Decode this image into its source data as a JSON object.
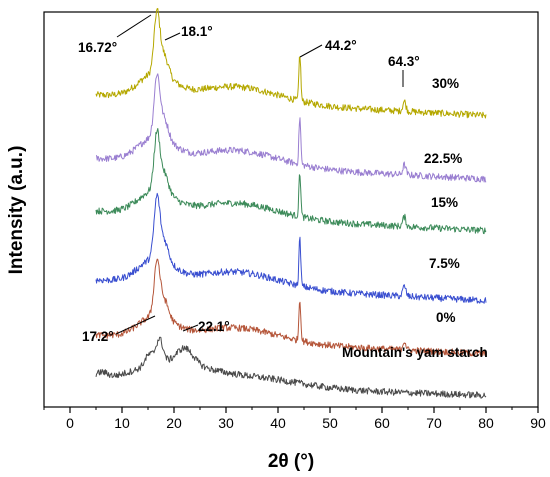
{
  "chart_data": {
    "type": "line",
    "xlabel": "2θ (°)",
    "ylabel": "Intensity (a.u.)",
    "xlim": [
      -5,
      90
    ],
    "x_ticks": [
      "0",
      "10",
      "20",
      "30",
      "40",
      "50",
      "60",
      "70",
      "80",
      "90"
    ],
    "y_ticks_shown": false,
    "series": [
      {
        "name": "30%",
        "color": "#b5a800",
        "offset": 5.2,
        "scale": 1.0
      },
      {
        "name": "22.5%",
        "color": "#9a7fd1",
        "offset": 4.05,
        "scale": 1.0
      },
      {
        "name": "15%",
        "color": "#3d8b5a",
        "offset": 3.1,
        "scale": 0.95
      },
      {
        "name": "7.5%",
        "color": "#3a4fd0",
        "offset": 1.85,
        "scale": 1.0
      },
      {
        "name": "0%",
        "color": "#b5563a",
        "offset": 0.85,
        "scale": 0.9
      },
      {
        "name": "Mountain's yam starch",
        "color": "#4a4a4a",
        "offset": 0.0,
        "scale": 0.8
      }
    ],
    "annotations": [
      "16.72°",
      "18.1°",
      "44.2°",
      "64.3°",
      "17.2°",
      "22.1°"
    ]
  }
}
